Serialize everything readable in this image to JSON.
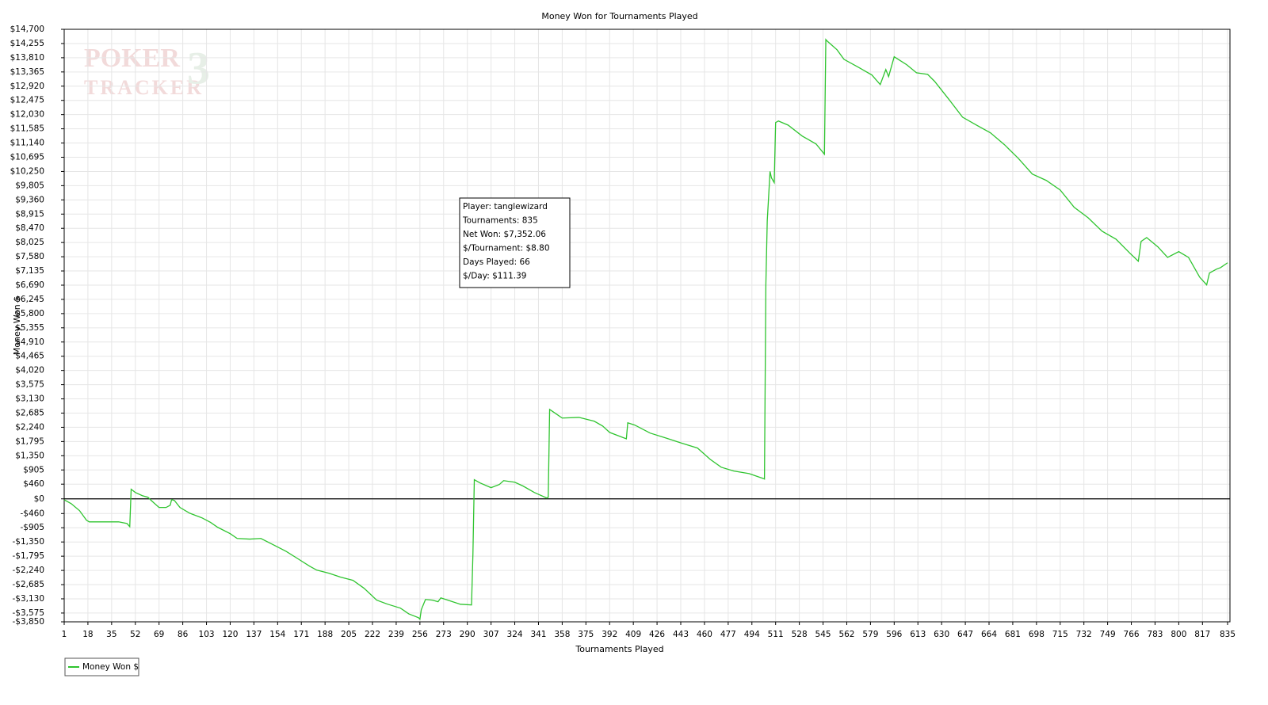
{
  "chart_data": {
    "type": "line",
    "title": "Money Won for Tournaments Played",
    "x_label": "Tournaments Played",
    "y_label": "Money Won $",
    "watermark": [
      "POKER",
      "TRACKER",
      "3"
    ],
    "annotations": [
      "Player: tanglewizard",
      "Tournaments: 835",
      "Net Won: $7,352.06",
      "$/Tournament: $8.80",
      "Days Played: 66",
      "$/Day: $111.39"
    ],
    "grid": true,
    "legend": "bottom-left",
    "xlim": [
      1,
      835
    ],
    "xticks": [
      1,
      18,
      35,
      52,
      69,
      86,
      103,
      120,
      137,
      154,
      171,
      188,
      205,
      222,
      239,
      256,
      273,
      290,
      307,
      324,
      341,
      358,
      375,
      392,
      409,
      426,
      443,
      460,
      477,
      494,
      511,
      528,
      545,
      562,
      579,
      596,
      613,
      630,
      647,
      664,
      681,
      698,
      715,
      732,
      749,
      766,
      783,
      800,
      817,
      835
    ],
    "ylim": [
      -3850,
      14700
    ],
    "yticks": [
      {
        "value": -3850,
        "label": "-$3,850"
      },
      {
        "value": -3575,
        "label": "-$3,575"
      },
      {
        "value": -3130,
        "label": "-$3,130"
      },
      {
        "value": -2685,
        "label": "-$2,685"
      },
      {
        "value": -2240,
        "label": "-$2,240"
      },
      {
        "value": -1795,
        "label": "-$1,795"
      },
      {
        "value": -1350,
        "label": "-$1,350"
      },
      {
        "value": -905,
        "label": "-$905"
      },
      {
        "value": -460,
        "label": "-$460"
      },
      {
        "value": 0,
        "label": "$0"
      },
      {
        "value": 460,
        "label": "$460"
      },
      {
        "value": 905,
        "label": "$905"
      },
      {
        "value": 1350,
        "label": "$1,350"
      },
      {
        "value": 1795,
        "label": "$1,795"
      },
      {
        "value": 2240,
        "label": "$2,240"
      },
      {
        "value": 2685,
        "label": "$2,685"
      },
      {
        "value": 3130,
        "label": "$3,130"
      },
      {
        "value": 3575,
        "label": "$3,575"
      },
      {
        "value": 4020,
        "label": "$4,020"
      },
      {
        "value": 4465,
        "label": "$4,465"
      },
      {
        "value": 4910,
        "label": "$4,910"
      },
      {
        "value": 5355,
        "label": "$5,355"
      },
      {
        "value": 5800,
        "label": "$5,800"
      },
      {
        "value": 6245,
        "label": "$6,245"
      },
      {
        "value": 6690,
        "label": "$6,690"
      },
      {
        "value": 7135,
        "label": "$7,135"
      },
      {
        "value": 7580,
        "label": "$7,580"
      },
      {
        "value": 8025,
        "label": "$8,025"
      },
      {
        "value": 8470,
        "label": "$8,470"
      },
      {
        "value": 8915,
        "label": "$8,915"
      },
      {
        "value": 9360,
        "label": "$9,360"
      },
      {
        "value": 9805,
        "label": "$9,805"
      },
      {
        "value": 10250,
        "label": "$10,250"
      },
      {
        "value": 10695,
        "label": "$10,695"
      },
      {
        "value": 11140,
        "label": "$11,140"
      },
      {
        "value": 11585,
        "label": "$11,585"
      },
      {
        "value": 12030,
        "label": "$12,030"
      },
      {
        "value": 12475,
        "label": "$12,475"
      },
      {
        "value": 12920,
        "label": "$12,920"
      },
      {
        "value": 13365,
        "label": "$13,365"
      },
      {
        "value": 13810,
        "label": "$13,810"
      },
      {
        "value": 14255,
        "label": "$14,255"
      },
      {
        "value": 14700,
        "label": "$14,700"
      }
    ],
    "x": [
      1,
      6,
      12,
      17,
      19,
      29,
      40,
      46,
      48,
      49,
      52,
      57,
      61,
      64,
      69,
      74,
      77,
      78,
      80,
      84,
      91,
      100,
      106,
      111,
      120,
      125,
      134,
      142,
      151,
      160,
      168,
      177,
      182,
      191,
      199,
      208,
      216,
      225,
      233,
      242,
      248,
      255,
      256,
      257,
      260,
      265,
      269,
      271,
      276,
      285,
      293,
      294,
      295,
      299,
      307,
      313,
      316,
      324,
      330,
      338,
      347,
      348,
      349,
      353,
      358,
      370,
      381,
      387,
      392,
      404,
      405,
      410,
      421,
      432,
      444,
      455,
      464,
      472,
      481,
      492,
      502,
      503,
      504,
      505,
      507,
      508,
      510,
      511,
      513,
      520,
      530,
      540,
      546,
      547,
      548,
      555,
      560,
      570,
      580,
      586,
      590,
      592,
      596,
      605,
      612,
      620,
      625,
      635,
      645,
      655,
      665,
      675,
      685,
      695,
      705,
      715,
      725,
      735,
      745,
      755,
      765,
      771,
      773,
      777,
      785,
      792,
      800,
      807,
      815,
      820,
      822,
      827,
      830,
      835
    ],
    "series": [
      {
        "name": "Money Won $",
        "color": "#2fc42f",
        "values": [
          -30,
          -150,
          -370,
          -670,
          -720,
          -720,
          -720,
          -770,
          -870,
          300,
          200,
          100,
          50,
          -75,
          -270,
          -270,
          -200,
          -25,
          -50,
          -270,
          -450,
          -600,
          -740,
          -890,
          -1090,
          -1240,
          -1260,
          -1240,
          -1440,
          -1640,
          -1860,
          -2110,
          -2230,
          -2330,
          -2450,
          -2550,
          -2800,
          -3170,
          -3300,
          -3420,
          -3600,
          -3720,
          -3770,
          -3470,
          -3150,
          -3170,
          -3220,
          -3100,
          -3170,
          -3300,
          -3320,
          -1740,
          600,
          500,
          350,
          450,
          570,
          520,
          400,
          200,
          25,
          50,
          2800,
          2680,
          2530,
          2550,
          2430,
          2280,
          2080,
          1880,
          2380,
          2310,
          2060,
          1910,
          1740,
          1590,
          1240,
          990,
          870,
          790,
          640,
          620,
          6700,
          8700,
          10250,
          10050,
          9900,
          11780,
          11830,
          11700,
          11360,
          11110,
          10790,
          14380,
          14330,
          14060,
          13760,
          13520,
          13270,
          12970,
          13440,
          13220,
          13840,
          13590,
          13340,
          13290,
          13070,
          12520,
          11950,
          11700,
          11460,
          11090,
          10660,
          10170,
          9970,
          9670,
          9130,
          8800,
          8380,
          8130,
          7690,
          7440,
          8060,
          8180,
          7890,
          7560,
          7740,
          7560,
          6940,
          6700,
          7070,
          7190,
          7240,
          7390
        ]
      }
    ]
  }
}
